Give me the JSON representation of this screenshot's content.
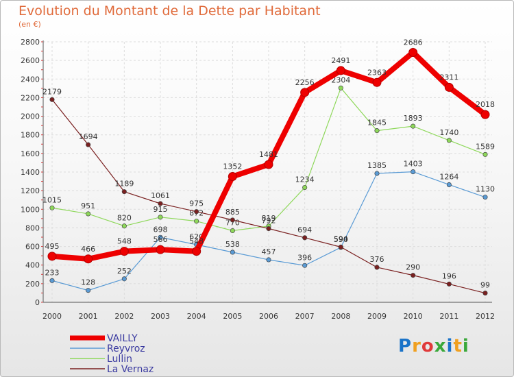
{
  "title": "Evolution du Montant de la Dette par Habitant",
  "subtitle": "(en €)",
  "logo_text": "Proxiti",
  "chart_data": {
    "type": "line",
    "x": [
      "2000",
      "2001",
      "2002",
      "2003",
      "2004",
      "2005",
      "2006",
      "2007",
      "2008",
      "2009",
      "2010",
      "2011",
      "2012"
    ],
    "ylim": [
      0,
      2800
    ],
    "yticks": [
      "0",
      "200",
      "400",
      "600",
      "800",
      "1000",
      "1200",
      "1400",
      "1600",
      "1800",
      "2000",
      "2200",
      "2400",
      "2600",
      "2800"
    ],
    "grid": true,
    "legend_position": "bottom-left",
    "series": [
      {
        "name": "VAILLY",
        "color": "#ee0000",
        "values": [
          495,
          466,
          548,
          566,
          548,
          1352,
          1481,
          2256,
          2491,
          2363,
          2686,
          2311,
          2018
        ],
        "labels": [
          "495",
          "466",
          "548",
          "566",
          "548",
          "1352",
          "1481",
          "2256",
          "2491",
          "2363",
          "2686",
          "2311",
          "2018"
        ]
      },
      {
        "name": "Reyvroz",
        "color": "#5a9bd5",
        "values": [
          233,
          128,
          252,
          698,
          620,
          538,
          457,
          396,
          590,
          1385,
          1403,
          1264,
          1130
        ],
        "labels": [
          "233",
          "128",
          "252",
          "698",
          "620",
          "538",
          "457",
          "396",
          "590",
          "1385",
          "1403",
          "1264",
          "1130"
        ]
      },
      {
        "name": "Lullin",
        "color": "#8ed85a",
        "values": [
          1015,
          951,
          820,
          915,
          872,
          770,
          819,
          1234,
          2304,
          1845,
          1893,
          1740,
          1589
        ],
        "labels": [
          "1015",
          "951",
          "820",
          "915",
          "872",
          "770",
          "819",
          "1234",
          "2304",
          "1845",
          "1893",
          "1740",
          "1589"
        ]
      },
      {
        "name": "La Vernaz",
        "color": "#7a2020",
        "values": [
          2179,
          1694,
          1189,
          1061,
          975,
          885,
          792,
          694,
          594,
          376,
          290,
          196,
          99
        ],
        "labels": [
          "2179",
          "1694",
          "1189",
          "1061",
          "975",
          "885",
          "792",
          "694",
          "594",
          "376",
          "290",
          "196",
          "99"
        ]
      }
    ]
  }
}
